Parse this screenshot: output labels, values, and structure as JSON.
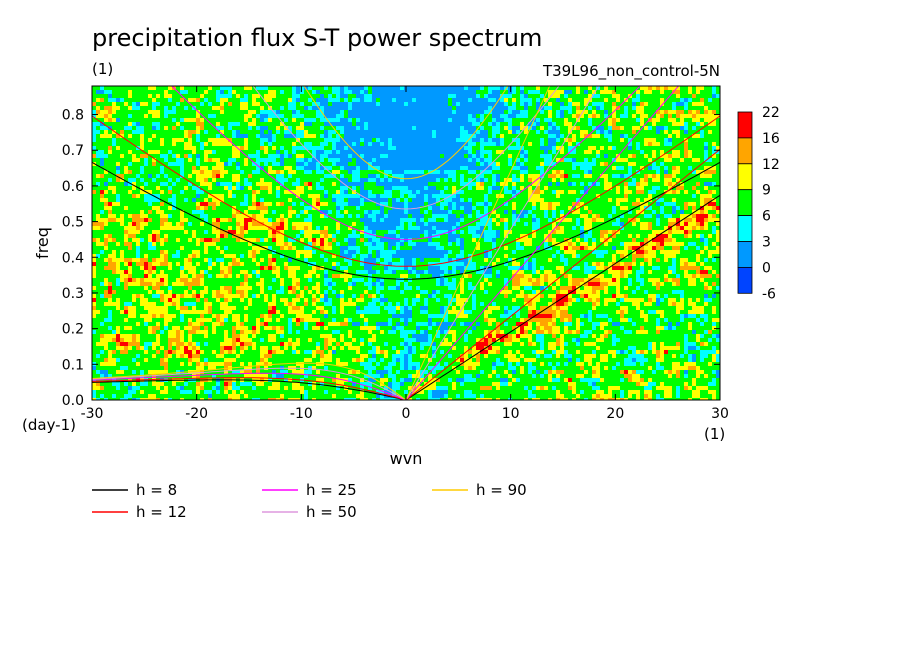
{
  "chart_data": {
    "type": "heatmap",
    "title": "precipitation flux S-T power spectrum",
    "subtitle_left": "(1)",
    "subtitle_right": "T39L96_non_control-5N",
    "xlabel": "wvn",
    "ylabel": "freq",
    "x_unit_label": "(1)",
    "y_unit_label": "(day-1)",
    "xlim": [
      -30,
      30
    ],
    "ylim": [
      0,
      0.88
    ],
    "x_ticks": [
      -30,
      -20,
      -10,
      0,
      10,
      20,
      30
    ],
    "x_tick_labels": [
      "-30",
      "-20",
      "-10",
      "0",
      "10",
      "20",
      "30"
    ],
    "y_ticks": [
      0,
      0.1,
      0.2,
      0.3,
      0.4,
      0.5,
      0.6,
      0.7,
      0.8
    ],
    "y_tick_labels": [
      "0.0",
      "0.1",
      "0.2",
      "0.3",
      "0.4",
      "0.5",
      "0.6",
      "0.7",
      "0.8"
    ],
    "colorbar": {
      "levels": [
        "22",
        "16",
        "12",
        "9",
        "6",
        "3",
        "0",
        "-6"
      ],
      "colors": [
        "#ff0000",
        "#ffa500",
        "#ffff00",
        "#00ff00",
        "#00ffff",
        "#0099ff",
        "#0044ff"
      ]
    },
    "field_colors": {
      "very_low": "#0099ff",
      "low": "#00ffff",
      "mid": "#00ff00",
      "high": "#ffff00",
      "higher": "#ffa500",
      "peak": "#ff0000"
    },
    "dispersion_curves": [
      {
        "h_label": "h =  8",
        "h": 8,
        "color": "#000000"
      },
      {
        "h_label": "h = 12",
        "h": 12,
        "color": "#ff0000"
      },
      {
        "h_label": "h = 25",
        "h": 25,
        "color": "#ff00ff"
      },
      {
        "h_label": "h = 50",
        "h": 50,
        "color": "#dd99dd"
      },
      {
        "h_label": "h = 90",
        "h": 90,
        "color": "#ffcc00"
      }
    ]
  }
}
